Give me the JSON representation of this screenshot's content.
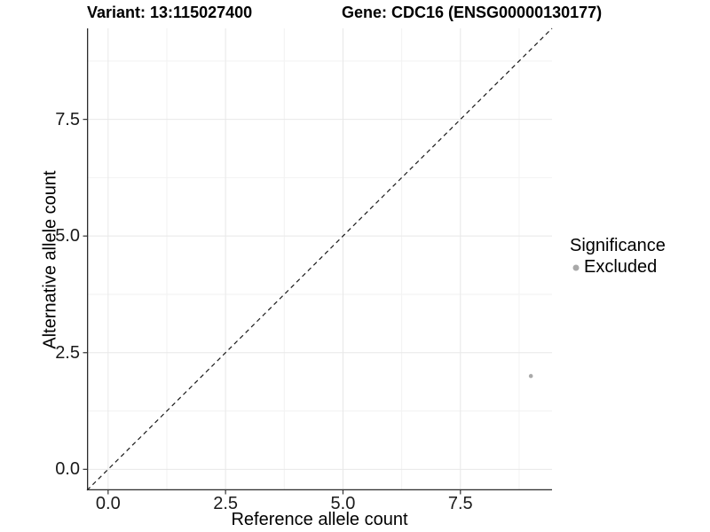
{
  "header": {
    "variant_title": "Variant: 13:115027400",
    "gene_title": "Gene: CDC16 (ENSG00000130177)"
  },
  "chart_data": {
    "type": "scatter",
    "title_left": "Variant: 13:115027400",
    "title_right": "Gene: CDC16 (ENSG00000130177)",
    "xlabel": "Reference allele count",
    "ylabel": "Alternative allele count",
    "xlim": [
      -0.45,
      9.45
    ],
    "ylim": [
      -0.45,
      9.45
    ],
    "x_major_ticks": [
      0.0,
      2.5,
      5.0,
      7.5
    ],
    "y_major_ticks": [
      0.0,
      2.5,
      5.0,
      7.5
    ],
    "x_minor_ticks": [
      1.25,
      3.75,
      6.25,
      8.75
    ],
    "y_minor_ticks": [
      1.25,
      3.75,
      6.25,
      8.75
    ],
    "tick_decimals": 1,
    "grid": true,
    "identity_line": {
      "slope": 1,
      "intercept": 0,
      "style": "dashed",
      "color": "#1a1a1a"
    },
    "series": [
      {
        "name": "Excluded",
        "color": "#a9a9a9",
        "point_radius": 2.3,
        "points": [
          {
            "x": 9,
            "y": 2
          }
        ]
      }
    ],
    "legend": {
      "title": "Significance",
      "position": "right",
      "items": [
        {
          "label": "Excluded",
          "color": "#a9a9a9"
        }
      ]
    },
    "colors": {
      "background": "#ffffff",
      "grid_major": "#e8e8e8",
      "grid_minor": "#f2f2f2",
      "axis_line": "#2b2b2b",
      "tick_mark": "#333333",
      "tick_label": "#1a1a1a"
    }
  }
}
